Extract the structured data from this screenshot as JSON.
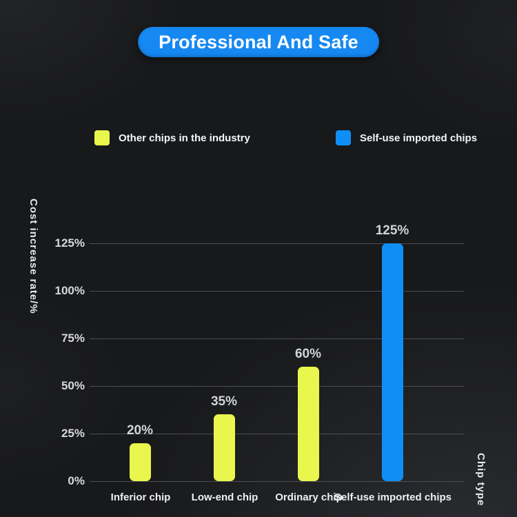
{
  "title": {
    "label": "Professional And Safe",
    "bg_color": "#1688f2",
    "text_color": "#ffffff"
  },
  "legend": [
    {
      "label": "Other chips in the industry",
      "color": "#e9f64e"
    },
    {
      "label": "Self-use imported chips",
      "color": "#0f8ff5"
    }
  ],
  "chart_data": {
    "type": "bar",
    "categories": [
      "Inferior chip",
      "Low-end chip",
      "Ordinary chip",
      "Self-use imported chips"
    ],
    "values": [
      20,
      35,
      60,
      125
    ],
    "data_labels": [
      "20%",
      "35%",
      "60%",
      "125%"
    ],
    "bar_colors": [
      "#e9f64e",
      "#e9f64e",
      "#e9f64e",
      "#0f8ff5"
    ],
    "series": [
      {
        "name": "Other chips in the industry",
        "values": [
          20,
          35,
          60,
          null
        ],
        "color": "#e9f64e"
      },
      {
        "name": "Self-use imported chips",
        "values": [
          null,
          null,
          null,
          125
        ],
        "color": "#0f8ff5"
      }
    ],
    "title": "Professional And Safe",
    "xlabel": "Chip type",
    "ylabel": "Cost increase rate/%",
    "ylim": [
      0,
      125
    ],
    "yticks": [
      0,
      25,
      50,
      75,
      100,
      125
    ],
    "ytick_labels": [
      "0%",
      "25%",
      "50%",
      "75%",
      "100%",
      "125%"
    ],
    "grid": true,
    "gridline_color": "#4e4f54",
    "legend_position": "top",
    "background": "dark"
  }
}
